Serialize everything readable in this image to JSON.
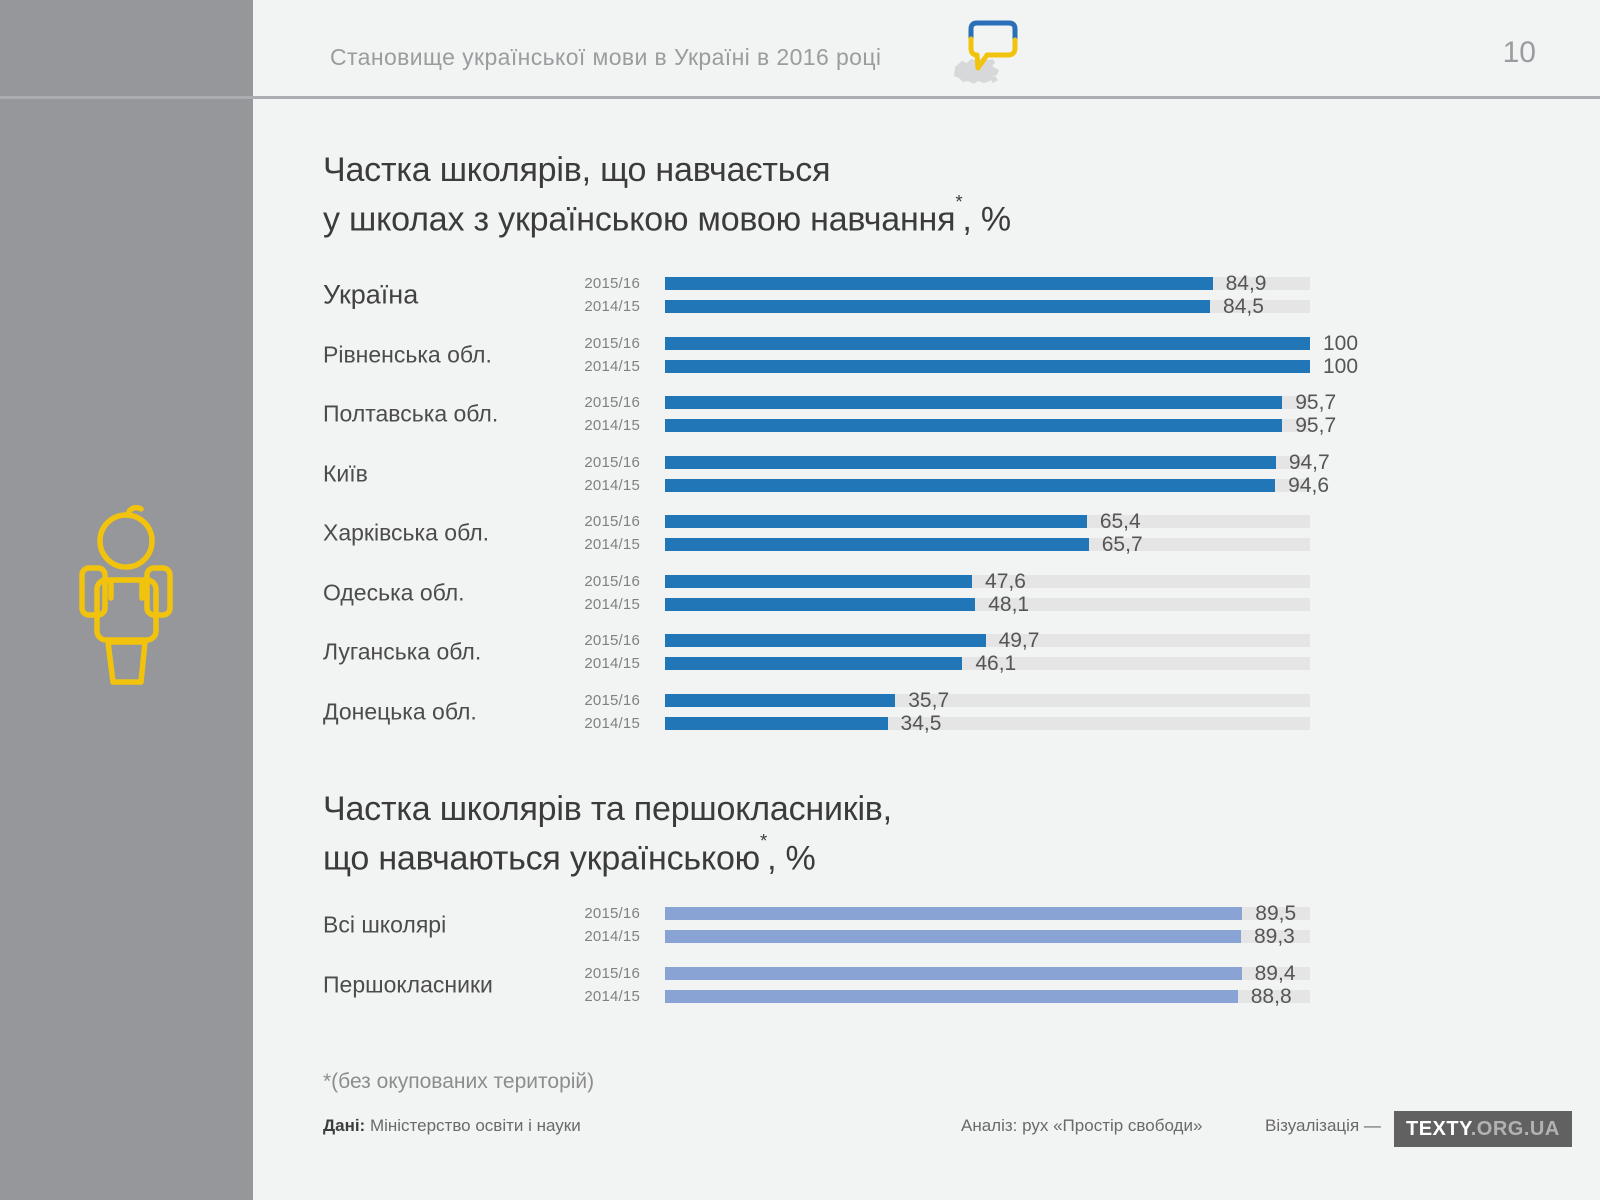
{
  "header": {
    "title": "Становище української мови в Україні в 2016 році",
    "page_number": "10",
    "icon": "speech-bubble-ukraine-icon"
  },
  "sidebar": {
    "icon": "student-figure-icon"
  },
  "colors": {
    "sidebar_gray": "#95979a",
    "background": "#f2f3f3",
    "bar_blue": "#2076b6",
    "bar_light_blue": "#8aa3d5",
    "track_gray": "#e5e5e6",
    "accent_yellow": "#f2c30d",
    "accent_blue": "#2a70b8"
  },
  "chart_data": [
    {
      "type": "bar",
      "orientation": "horizontal",
      "title": "Частка школярів, що навчається у школах з українською мовою навчання*, %",
      "title_parts": {
        "line1": "Частка школярів, що навчається",
        "line2_pre": "у школах з українською мовою навчання",
        "sup": "*",
        "line2_post": ", %"
      },
      "xlim": [
        0,
        100
      ],
      "grid": false,
      "legend": "per-row year labels",
      "categories": [
        "Україна",
        "Рівненська обл.",
        "Полтавська обл.",
        "Київ",
        "Харківська обл.",
        "Одеська обл.",
        "Луганська обл.",
        "Донецька обл."
      ],
      "series": [
        {
          "name": "2015/16",
          "values": [
            84.9,
            100,
            95.7,
            94.7,
            65.4,
            47.6,
            49.7,
            35.7
          ],
          "labels": [
            "84,9",
            "100",
            "95,7",
            "94,7",
            "65,4",
            "47,6",
            "49,7",
            "35,7"
          ]
        },
        {
          "name": "2014/15",
          "values": [
            84.5,
            100,
            95.7,
            94.6,
            65.7,
            48.1,
            46.1,
            34.5
          ],
          "labels": [
            "84,5",
            "100",
            "95,7",
            "94,6",
            "65,7",
            "48,1",
            "46,1",
            "34,5"
          ]
        }
      ],
      "bar_color": "#2076b6"
    },
    {
      "type": "bar",
      "orientation": "horizontal",
      "title": "Частка школярів та першокласників, що навчаються українською*, %",
      "title_parts": {
        "line1": "Частка школярів та першокласників,",
        "line2_pre": "що навчаються українською",
        "sup": "*",
        "line2_post": ", %"
      },
      "xlim": [
        0,
        100
      ],
      "grid": false,
      "legend": "per-row year labels",
      "categories": [
        "Всі школярі",
        "Першокласники"
      ],
      "series": [
        {
          "name": "2015/16",
          "values": [
            89.5,
            89.4
          ],
          "labels": [
            "89,5",
            "89,4"
          ]
        },
        {
          "name": "2014/15",
          "values": [
            89.3,
            88.8
          ],
          "labels": [
            "89,3",
            "88,8"
          ]
        }
      ],
      "bar_color": "#8aa3d5"
    }
  ],
  "footnote": "*(без окупованих територій)",
  "footer": {
    "data_label": "Дані:",
    "data_source": " Міністерство освіти і науки",
    "analysis": "Аналіз: рух «Простір свободи»",
    "visualization_label": "Візуалізація —",
    "logo_primary": "TEXTY",
    "logo_secondary": ".ORG.UA"
  }
}
